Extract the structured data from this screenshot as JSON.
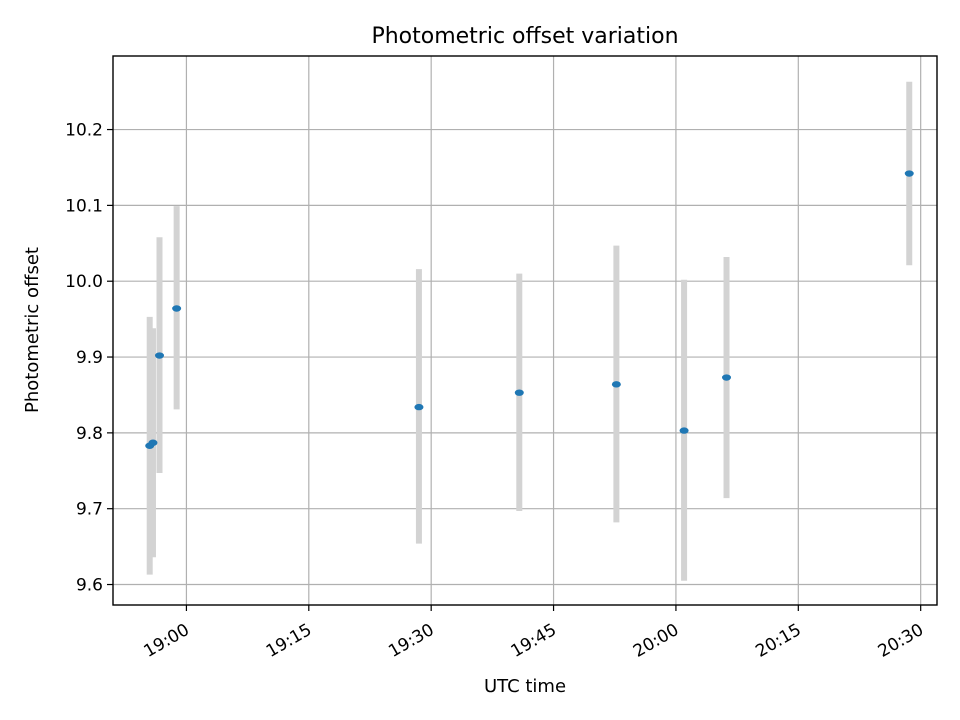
{
  "chart_data": {
    "type": "scatter",
    "title": "Photometric offset variation",
    "xlabel": "UTC time",
    "ylabel": "Photometric offset",
    "x_tick_labels": [
      "19:00",
      "19:15",
      "19:30",
      "19:45",
      "20:00",
      "20:15",
      "20:30"
    ],
    "x_ticks_minutes": [
      0,
      15,
      30,
      45,
      60,
      75,
      90
    ],
    "xlim_minutes": [
      -9,
      92
    ],
    "y_ticks": [
      9.6,
      9.7,
      9.8,
      9.9,
      10.0,
      10.1,
      10.2
    ],
    "y_tick_labels": [
      "9.6",
      "9.7",
      "9.8",
      "9.9",
      "10.0",
      "10.1",
      "10.2"
    ],
    "ylim": [
      9.573,
      10.297
    ],
    "grid": true,
    "series": [
      {
        "x_minutes": [
          -4.5,
          -4.1,
          -3.3,
          -1.2,
          28.5,
          40.8,
          52.7,
          61.0,
          66.2,
          88.6
        ],
        "y": [
          9.783,
          9.787,
          9.902,
          9.964,
          9.834,
          9.853,
          9.864,
          9.803,
          9.873,
          10.142
        ],
        "yerr_low": [
          9.613,
          9.636,
          9.747,
          9.831,
          9.654,
          9.697,
          9.682,
          9.605,
          9.714,
          10.021
        ],
        "yerr_high": [
          9.953,
          9.938,
          10.058,
          10.099,
          10.016,
          10.01,
          10.047,
          10.002,
          10.032,
          10.263
        ],
        "point_color": "#1f77b4",
        "errbar_color": "#d3d3d3"
      }
    ]
  }
}
